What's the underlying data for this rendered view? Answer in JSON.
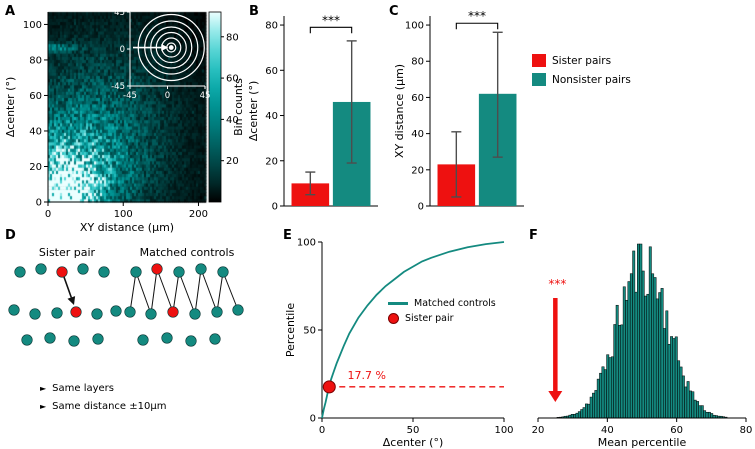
{
  "labels": {
    "A": "A",
    "B": "B",
    "C": "C",
    "D": "D",
    "E": "E",
    "F": "F"
  },
  "colors": {
    "teal": "#148a80",
    "red": "#ee1110",
    "error_bar": "#4d4d4d",
    "heat_background": "#000000"
  },
  "chart_data": [
    {
      "id": "A",
      "type": "heatmap",
      "xlabel": "XY distance (μm)",
      "ylabel": "Δcenter (°)",
      "xlim": [
        0,
        210
      ],
      "ylim": [
        0,
        107
      ],
      "xticks": [
        0,
        100,
        200
      ],
      "yticks": [
        0,
        20,
        40,
        60,
        80,
        100
      ],
      "colorbar": {
        "label": "Bin counts",
        "ticks": [
          20,
          40,
          60,
          80
        ],
        "range": [
          0,
          92
        ]
      },
      "colormap": "black-to-cyan",
      "density_description": "bin counts concentrated at low XY distance and low Δcenter, fading toward larger distances and angles",
      "inset": {
        "xticks": [
          -45,
          0,
          45
        ],
        "yticks": [
          45,
          0,
          -45
        ],
        "n_circles": 6,
        "description": "concentric circles around center with horizontal arrow and center dot"
      }
    },
    {
      "id": "B",
      "type": "bar",
      "categories": [
        "Sister pairs",
        "Nonsister pairs"
      ],
      "values": [
        10,
        46
      ],
      "error_low": [
        5,
        19
      ],
      "error_high": [
        15,
        73
      ],
      "bar_colors": [
        "#ee1110",
        "#148a80"
      ],
      "ylabel": "Δcenter (°)",
      "ylim": [
        0,
        84
      ],
      "yticks": [
        0,
        20,
        40,
        60,
        80
      ],
      "significance": "***",
      "bracket_y": 79
    },
    {
      "id": "C",
      "type": "bar",
      "categories": [
        "Sister pairs",
        "Nonsister pairs"
      ],
      "values": [
        23,
        62
      ],
      "error_low": [
        5,
        27
      ],
      "error_high": [
        41,
        96
      ],
      "bar_colors": [
        "#ee1110",
        "#148a80"
      ],
      "ylabel": "XY distance (μm)",
      "ylim": [
        0,
        105
      ],
      "yticks": [
        0,
        20,
        40,
        60,
        80,
        100
      ],
      "significance": "***",
      "bracket_y": 101,
      "legend": [
        "Sister pairs",
        "Nonsister pairs"
      ]
    },
    {
      "id": "E",
      "type": "line",
      "xlabel": "Δcenter (°)",
      "ylabel": "Percentile",
      "xlim": [
        0,
        100
      ],
      "ylim": [
        0,
        100
      ],
      "xticks": [
        0,
        50,
        100
      ],
      "yticks": [
        0,
        50,
        100
      ],
      "series": [
        {
          "name": "Matched controls",
          "color": "#148a80",
          "x": [
            0,
            1,
            2,
            3,
            4,
            5,
            6,
            8,
            10,
            12,
            15,
            20,
            25,
            30,
            35,
            40,
            45,
            50,
            55,
            60,
            70,
            80,
            90,
            100
          ],
          "y": [
            0,
            5,
            9,
            14,
            18,
            22,
            25,
            31,
            36,
            41,
            48,
            57,
            64,
            70,
            75,
            79,
            83,
            86,
            89,
            91,
            94.5,
            97,
            98.8,
            100
          ]
        }
      ],
      "marker": {
        "name": "Sister pair",
        "x": 4,
        "y": 17.7,
        "color": "#ee1110"
      },
      "annotation": {
        "text": "17.7 %",
        "color": "#ee1110"
      },
      "dashed_line": {
        "y": 17.7,
        "color": "#ee1110"
      }
    },
    {
      "id": "F",
      "type": "histogram",
      "xlabel": "Mean percentile",
      "xlim": [
        20,
        80
      ],
      "xticks": [
        20,
        40,
        60,
        80
      ],
      "distribution": {
        "shape": "normal",
        "mean": 50.3,
        "sd": 7.4
      },
      "n_bins": 88,
      "bar_color": "#148a80",
      "arrow": {
        "x": 25,
        "color": "#ee1110",
        "label": "***"
      }
    }
  ],
  "panel_d": {
    "left_title": "Sister pair",
    "right_title": "Matched controls",
    "bullet_marker": "►",
    "bullets": [
      "Same layers",
      "Same distance ±10μm"
    ],
    "dot_colors": {
      "control": "#148a80",
      "sister": "#ee1110"
    },
    "left_dots": [
      [
        20,
        46,
        "t"
      ],
      [
        41,
        43,
        "t"
      ],
      [
        62,
        46,
        "r"
      ],
      [
        83,
        43,
        "t"
      ],
      [
        104,
        46,
        "t"
      ],
      [
        14,
        84,
        "t"
      ],
      [
        35,
        88,
        "t"
      ],
      [
        57,
        87,
        "t"
      ],
      [
        76,
        86,
        "r"
      ],
      [
        97,
        88,
        "t"
      ],
      [
        116,
        85,
        "t"
      ],
      [
        27,
        114,
        "t"
      ],
      [
        50,
        112,
        "t"
      ],
      [
        74,
        115,
        "t"
      ],
      [
        98,
        113,
        "t"
      ]
    ],
    "left_arrow": {
      "from": [
        64,
        51
      ],
      "to": [
        74,
        79
      ]
    },
    "right_dots": [
      [
        136,
        46,
        "t"
      ],
      [
        157,
        43,
        "r"
      ],
      [
        179,
        46,
        "t"
      ],
      [
        201,
        43,
        "t"
      ],
      [
        223,
        46,
        "t"
      ],
      [
        130,
        86,
        "t"
      ],
      [
        151,
        88,
        "t"
      ],
      [
        173,
        86,
        "r"
      ],
      [
        195,
        88,
        "t"
      ],
      [
        217,
        86,
        "t"
      ],
      [
        238,
        84,
        "t"
      ],
      [
        143,
        114,
        "t"
      ],
      [
        167,
        112,
        "t"
      ],
      [
        191,
        115,
        "t"
      ],
      [
        215,
        113,
        "t"
      ]
    ],
    "right_links": [
      [
        0,
        5
      ],
      [
        0,
        6
      ],
      [
        1,
        6
      ],
      [
        1,
        7
      ],
      [
        2,
        7
      ],
      [
        2,
        8
      ],
      [
        3,
        8
      ],
      [
        3,
        9
      ],
      [
        4,
        9
      ],
      [
        4,
        10
      ]
    ]
  },
  "legend_e": {
    "line_label": "Matched controls",
    "dot_label": "Sister pair"
  }
}
